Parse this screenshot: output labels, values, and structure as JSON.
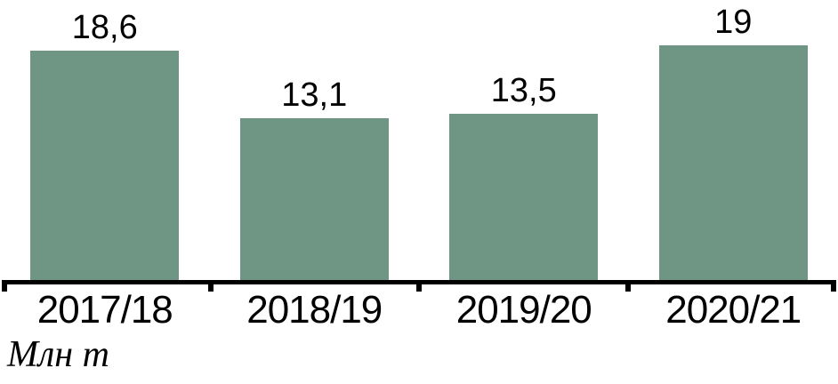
{
  "chart_data": {
    "type": "bar",
    "categories": [
      "2017/18",
      "2018/19",
      "2019/20",
      "2020/21"
    ],
    "values": [
      18.6,
      13.1,
      13.5,
      19
    ],
    "value_labels": [
      "18,6",
      "13,1",
      "13,5",
      "19"
    ],
    "title": "",
    "xlabel": "",
    "ylabel": "Млн т",
    "ylim": [
      0,
      22.7
    ],
    "grid": false,
    "legend": "none",
    "bar_color": "#6F9584",
    "axis_color": "#000000",
    "text_color": "#000000"
  },
  "footer": {
    "unit_label": "Млн т"
  }
}
